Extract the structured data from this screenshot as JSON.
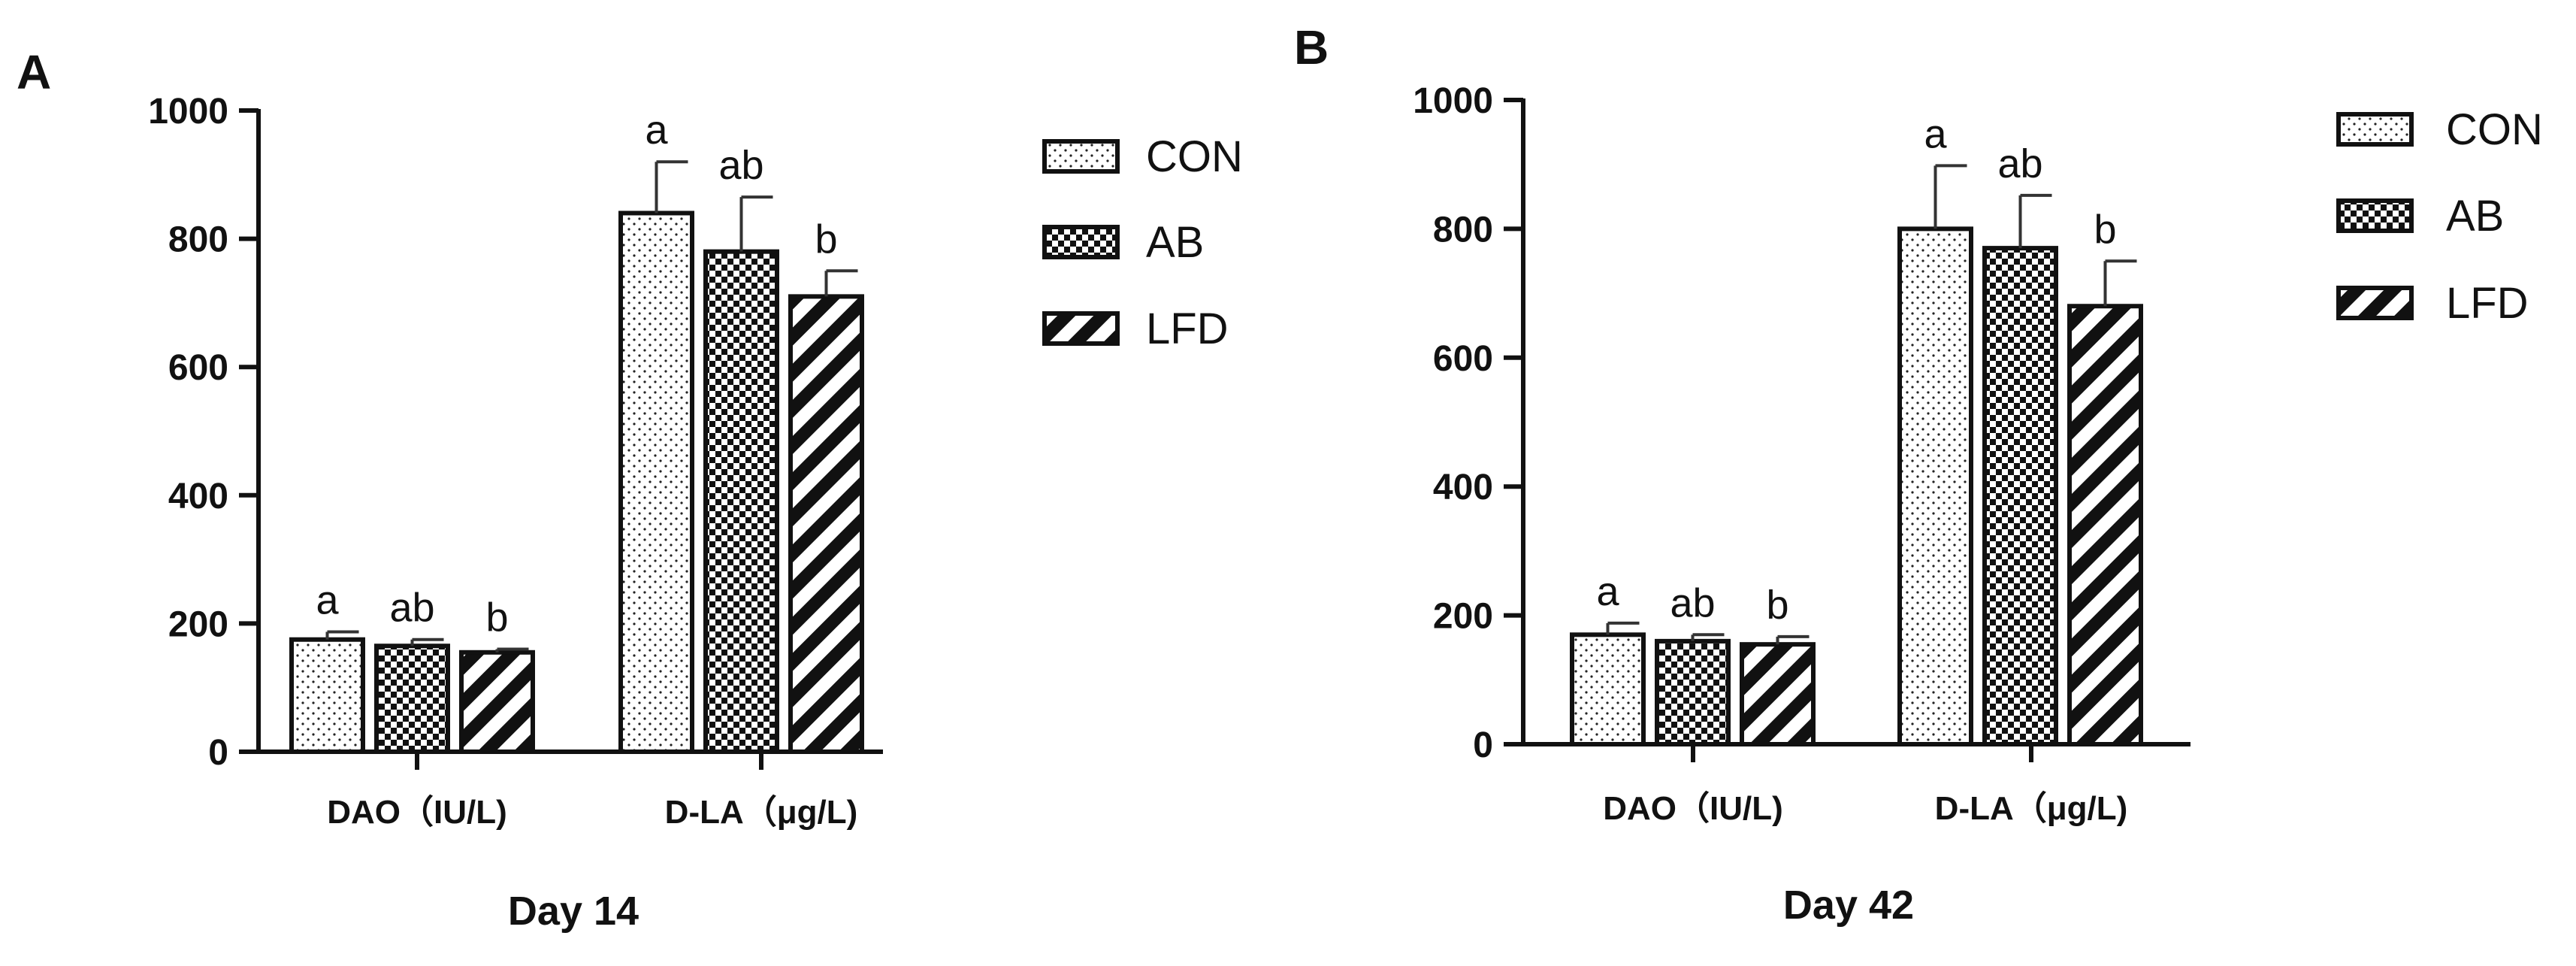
{
  "chart_data": [
    {
      "panel_label": "A",
      "type": "bar",
      "title": "Day 14",
      "categories": [
        "DAO（IU/L)",
        "D-LA（μg/L)"
      ],
      "yticks": [
        "0",
        "200",
        "400",
        "600",
        "800",
        "1000"
      ],
      "ylim": [
        0,
        1000
      ],
      "series": [
        {
          "name": "CON",
          "values": [
            175,
            840
          ],
          "errors": [
            12,
            80
          ],
          "letters": [
            "a",
            "a"
          ],
          "pattern": "dots"
        },
        {
          "name": "AB",
          "values": [
            165,
            780
          ],
          "errors": [
            10,
            85
          ],
          "letters": [
            "ab",
            "ab"
          ],
          "pattern": "checker"
        },
        {
          "name": "LFD",
          "values": [
            155,
            710
          ],
          "errors": [
            5,
            40
          ],
          "letters": [
            "b",
            "b"
          ],
          "pattern": "diagonal"
        }
      ],
      "legend_position": "top-right"
    },
    {
      "panel_label": "B",
      "type": "bar",
      "title": "Day 42",
      "categories": [
        "DAO（IU/L)",
        "D-LA（μg/L)"
      ],
      "yticks": [
        "0",
        "200",
        "400",
        "600",
        "800",
        "1000"
      ],
      "ylim": [
        0,
        1000
      ],
      "series": [
        {
          "name": "CON",
          "values": [
            170,
            800
          ],
          "errors": [
            18,
            98
          ],
          "letters": [
            "a",
            "a"
          ],
          "pattern": "dots"
        },
        {
          "name": "AB",
          "values": [
            160,
            770
          ],
          "errors": [
            10,
            82
          ],
          "letters": [
            "ab",
            "ab"
          ],
          "pattern": "checker"
        },
        {
          "name": "LFD",
          "values": [
            155,
            680
          ],
          "errors": [
            12,
            70
          ],
          "letters": [
            "b",
            "b"
          ],
          "pattern": "diagonal"
        }
      ],
      "legend_position": "top-right"
    }
  ]
}
